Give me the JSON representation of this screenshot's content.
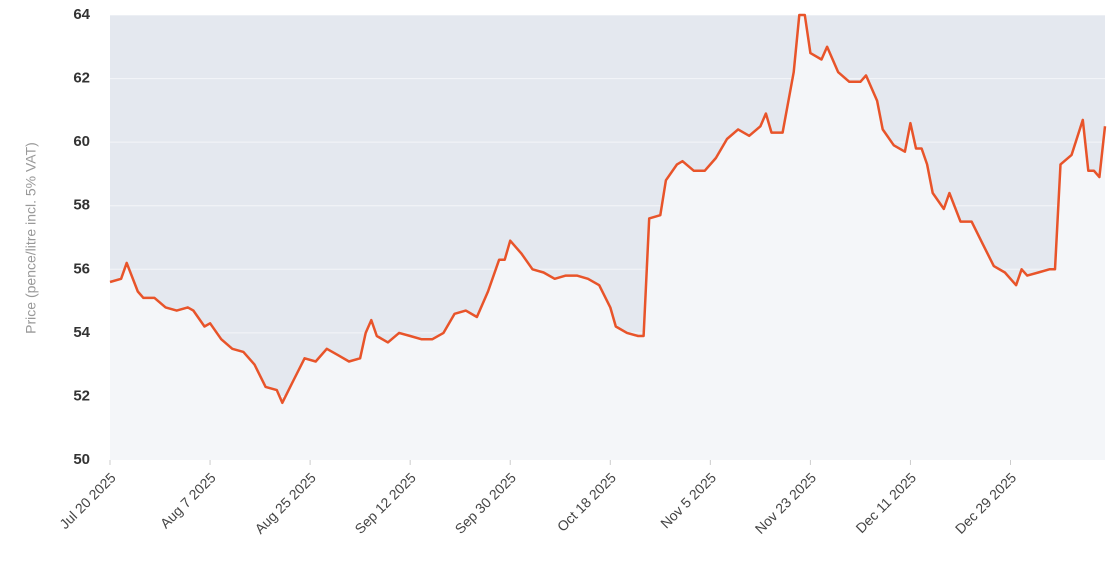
{
  "chart_data": {
    "type": "line",
    "y_label": "Price (pence/litre incl. 5% VAT)",
    "x": [
      "2025-07-20",
      "2025-07-22",
      "2025-07-23",
      "2025-07-25",
      "2025-07-26",
      "2025-07-28",
      "2025-07-30",
      "2025-08-01",
      "2025-08-03",
      "2025-08-04",
      "2025-08-06",
      "2025-08-07",
      "2025-08-09",
      "2025-08-11",
      "2025-08-13",
      "2025-08-15",
      "2025-08-17",
      "2025-08-19",
      "2025-08-20",
      "2025-08-22",
      "2025-08-24",
      "2025-08-26",
      "2025-08-28",
      "2025-08-30",
      "2025-09-01",
      "2025-09-03",
      "2025-09-04",
      "2025-09-05",
      "2025-09-06",
      "2025-09-08",
      "2025-09-10",
      "2025-09-12",
      "2025-09-14",
      "2025-09-16",
      "2025-09-18",
      "2025-09-20",
      "2025-09-22",
      "2025-09-24",
      "2025-09-26",
      "2025-09-28",
      "2025-09-29",
      "2025-09-30",
      "2025-10-02",
      "2025-10-04",
      "2025-10-06",
      "2025-10-08",
      "2025-10-10",
      "2025-10-12",
      "2025-10-14",
      "2025-10-16",
      "2025-10-18",
      "2025-10-19",
      "2025-10-21",
      "2025-10-23",
      "2025-10-24",
      "2025-10-25",
      "2025-10-27",
      "2025-10-28",
      "2025-10-30",
      "2025-10-31",
      "2025-11-02",
      "2025-11-04",
      "2025-11-06",
      "2025-11-08",
      "2025-11-10",
      "2025-11-12",
      "2025-11-14",
      "2025-11-15",
      "2025-11-16",
      "2025-11-18",
      "2025-11-20",
      "2025-11-21",
      "2025-11-22",
      "2025-11-23",
      "2025-11-25",
      "2025-11-26",
      "2025-11-28",
      "2025-11-30",
      "2025-12-02",
      "2025-12-03",
      "2025-12-05",
      "2025-12-06",
      "2025-12-08",
      "2025-12-10",
      "2025-12-11",
      "2025-12-12",
      "2025-12-13",
      "2025-12-14",
      "2025-12-15",
      "2025-12-17",
      "2025-12-18",
      "2025-12-20",
      "2025-12-22",
      "2025-12-24",
      "2025-12-26",
      "2025-12-28",
      "2025-12-30",
      "2025-12-31",
      "2026-01-01",
      "2026-01-03",
      "2026-01-05",
      "2026-01-06",
      "2026-01-07",
      "2026-01-09",
      "2026-01-11",
      "2026-01-12",
      "2026-01-13",
      "2026-01-14",
      "2026-01-15"
    ],
    "series": [
      {
        "name": "Price",
        "color": "#e8542a",
        "values": [
          55.6,
          55.7,
          56.2,
          55.3,
          55.1,
          55.1,
          54.8,
          54.7,
          54.8,
          54.7,
          54.2,
          54.3,
          53.8,
          53.5,
          53.4,
          53.0,
          52.3,
          52.2,
          51.8,
          52.5,
          53.2,
          53.1,
          53.5,
          53.3,
          53.1,
          53.2,
          54.0,
          54.4,
          53.9,
          53.7,
          54.0,
          53.9,
          53.8,
          53.8,
          54.0,
          54.6,
          54.7,
          54.5,
          55.3,
          56.3,
          56.3,
          56.9,
          56.5,
          56.0,
          55.9,
          55.7,
          55.8,
          55.8,
          55.7,
          55.5,
          54.8,
          54.2,
          54.0,
          53.9,
          53.9,
          57.6,
          57.7,
          58.8,
          59.3,
          59.4,
          59.1,
          59.1,
          59.5,
          60.1,
          60.4,
          60.2,
          60.5,
          60.9,
          60.3,
          60.3,
          62.2,
          64.0,
          64.0,
          62.8,
          62.6,
          63.0,
          62.2,
          61.9,
          61.9,
          62.1,
          61.3,
          60.4,
          59.9,
          59.7,
          60.6,
          59.8,
          59.8,
          59.3,
          58.4,
          57.9,
          58.4,
          57.5,
          57.5,
          56.8,
          56.1,
          55.9,
          55.5,
          56.0,
          55.8,
          55.9,
          56.0,
          56.0,
          59.3,
          59.6,
          60.7,
          59.1,
          59.1,
          58.9,
          60.5
        ]
      }
    ],
    "xlim": [
      "2025-07-20",
      "2026-01-15"
    ],
    "xticks": [
      {
        "value": "2025-07-20",
        "label": "Jul 20 2025"
      },
      {
        "value": "2025-08-07",
        "label": "Aug 7 2025"
      },
      {
        "value": "2025-08-25",
        "label": "Aug 25 2025"
      },
      {
        "value": "2025-09-12",
        "label": "Sep 12 2025"
      },
      {
        "value": "2025-09-30",
        "label": "Sep 30 2025"
      },
      {
        "value": "2025-10-18",
        "label": "Oct 18 2025"
      },
      {
        "value": "2025-11-05",
        "label": "Nov 5 2025"
      },
      {
        "value": "2025-11-23",
        "label": "Nov 23 2025"
      },
      {
        "value": "2025-12-11",
        "label": "Dec 11 2025"
      },
      {
        "value": "2025-12-29",
        "label": "Dec 29 2025"
      }
    ],
    "ylim": [
      50,
      64
    ],
    "yticks": [
      50,
      52,
      54,
      56,
      58,
      60,
      62,
      64
    ],
    "grid": true
  }
}
